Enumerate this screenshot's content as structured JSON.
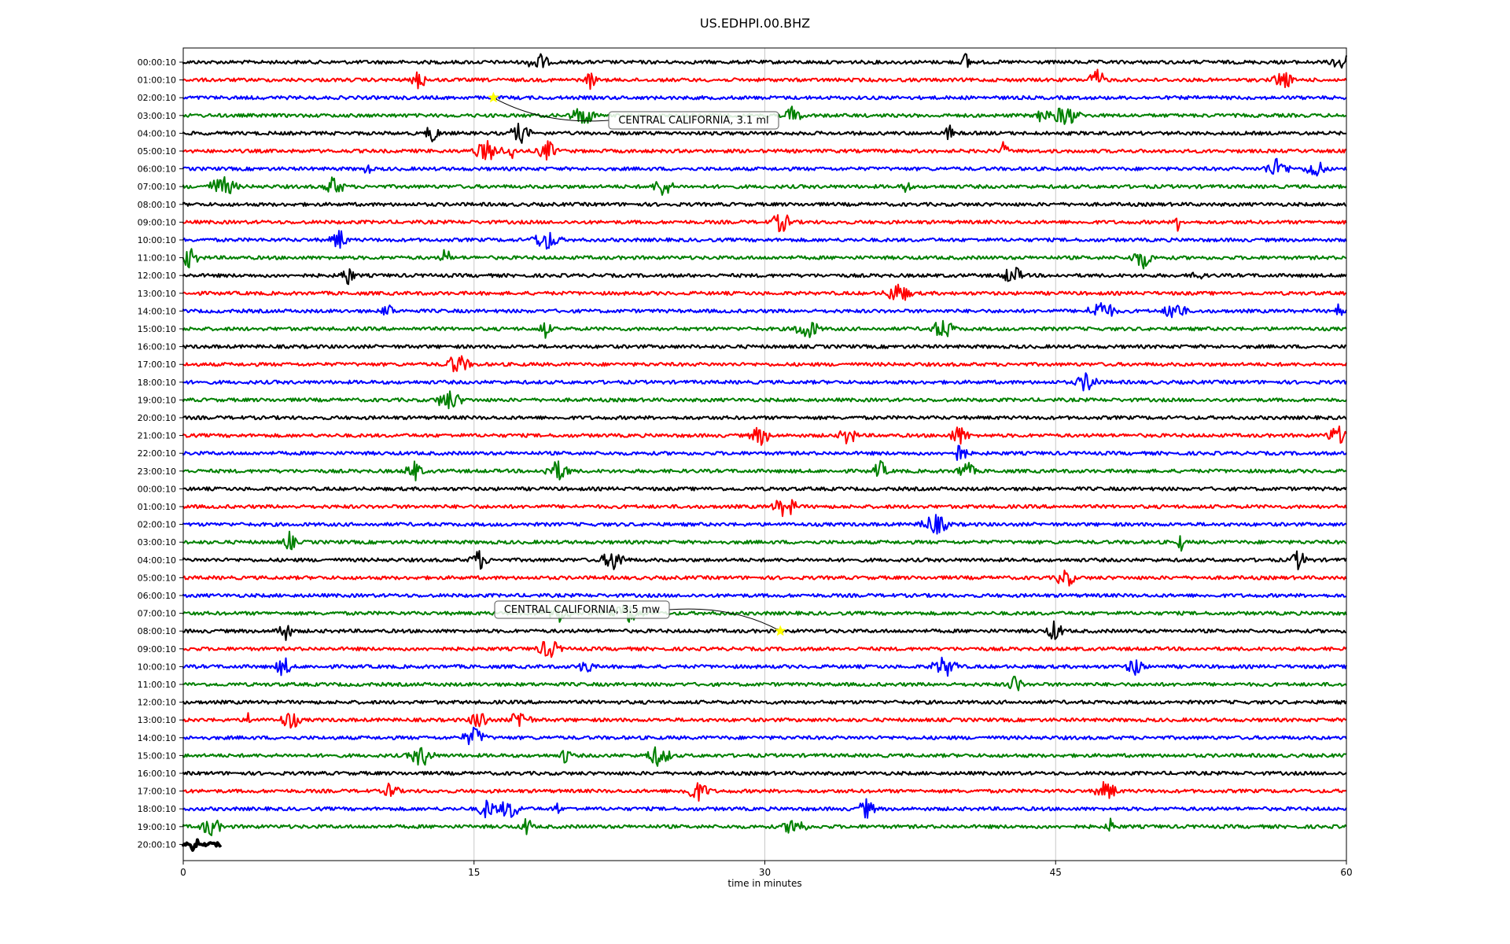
{
  "chart_data": {
    "type": "line",
    "title": "US.EDHPI.00.BHZ",
    "xlabel": "time in minutes",
    "ylabel": "",
    "xlim": [
      0,
      60
    ],
    "x_ticks": [
      0,
      15,
      30,
      45,
      60
    ],
    "x_tick_labels": [
      "0",
      "15",
      "30",
      "45",
      "60"
    ],
    "grid_x": true,
    "row_labels": [
      "00:00:10",
      "01:00:10",
      "02:00:10",
      "03:00:10",
      "04:00:10",
      "05:00:10",
      "06:00:10",
      "07:00:10",
      "08:00:10",
      "09:00:10",
      "10:00:10",
      "11:00:10",
      "12:00:10",
      "13:00:10",
      "14:00:10",
      "15:00:10",
      "16:00:10",
      "17:00:10",
      "18:00:10",
      "19:00:10",
      "20:00:10",
      "21:00:10",
      "22:00:10",
      "23:00:10",
      "00:00:10",
      "01:00:10",
      "02:00:10",
      "03:00:10",
      "04:00:10",
      "05:00:10",
      "06:00:10",
      "07:00:10",
      "08:00:10",
      "09:00:10",
      "10:00:10",
      "11:00:10",
      "12:00:10",
      "13:00:10",
      "14:00:10",
      "15:00:10",
      "16:00:10",
      "17:00:10",
      "18:00:10",
      "19:00:10",
      "20:00:10"
    ],
    "trace_colors": [
      "#000000",
      "#ff0000",
      "#0000ff",
      "#008000"
    ],
    "last_trace_end_minute": 2,
    "events": [
      {
        "label": "CENTRAL CALIFORNIA, 3.1 ml",
        "row": 2,
        "minute": 16.0
      },
      {
        "label": "CENTRAL CALIFORNIA, 3.5 mw",
        "row": 32,
        "minute": 30.8
      }
    ],
    "marker_color": "#ffff00"
  }
}
